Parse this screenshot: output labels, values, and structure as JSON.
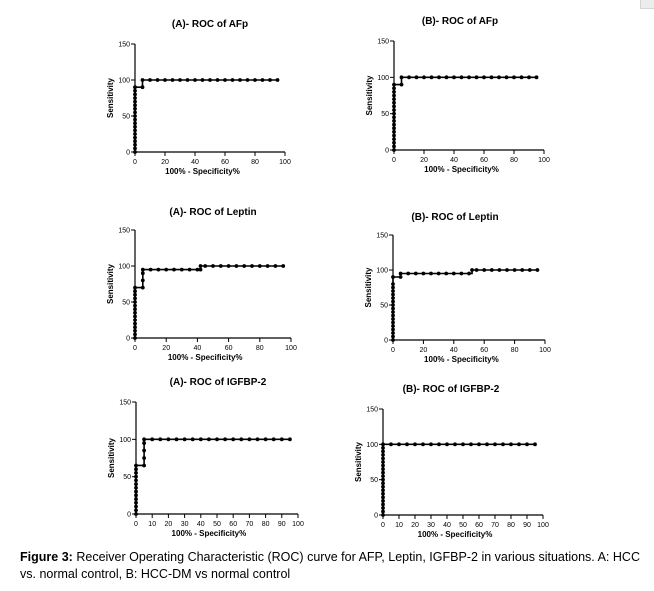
{
  "caption": {
    "label": "Figure 3:",
    "text": " Receiver Operating Characteristic (ROC) curve for AFP, Leptin, IGFBP-2 in various situations. A: HCC vs. normal control, B: HCC-DM vs normal control"
  },
  "chart_data": [
    {
      "type": "line",
      "title": "(A)- ROC of AFp",
      "xlabel": "100%  - Specificity%",
      "ylabel": "Sensitivity",
      "xlim": [
        0,
        100
      ],
      "ylim": [
        0,
        150
      ],
      "xticks": [
        0,
        20,
        40,
        60,
        80,
        100
      ],
      "yticks": [
        0,
        50,
        100,
        150
      ],
      "series": [
        {
          "color": "#000000",
          "x": [
            0,
            0,
            0,
            0,
            0,
            0,
            0,
            0,
            0,
            0,
            0,
            0,
            0,
            0,
            0,
            0,
            0,
            0,
            0,
            5,
            5,
            10,
            15,
            20,
            25,
            30,
            35,
            40,
            45,
            50,
            55,
            60,
            65,
            70,
            75,
            80,
            85,
            90,
            95
          ],
          "y": [
            0,
            5,
            10,
            15,
            20,
            25,
            30,
            35,
            40,
            45,
            50,
            55,
            60,
            65,
            70,
            75,
            80,
            85,
            90,
            90,
            100,
            100,
            100,
            100,
            100,
            100,
            100,
            100,
            100,
            100,
            100,
            100,
            100,
            100,
            100,
            100,
            100,
            100,
            100
          ]
        }
      ]
    },
    {
      "type": "line",
      "title": "(B)- ROC of AFp",
      "xlabel": "100%  - Specificity%",
      "ylabel": "Sensitivity",
      "xlim": [
        0,
        100
      ],
      "ylim": [
        0,
        150
      ],
      "xticks": [
        0,
        20,
        40,
        60,
        80,
        100
      ],
      "yticks": [
        0,
        50,
        100,
        150
      ],
      "series": [
        {
          "color": "#000000",
          "x": [
            0,
            0,
            0,
            0,
            0,
            0,
            0,
            0,
            0,
            0,
            0,
            0,
            0,
            0,
            0,
            0,
            0,
            0,
            0,
            5,
            5,
            10,
            15,
            20,
            25,
            30,
            35,
            40,
            45,
            50,
            55,
            60,
            65,
            70,
            75,
            80,
            85,
            90,
            95
          ],
          "y": [
            0,
            5,
            10,
            15,
            20,
            25,
            30,
            35,
            40,
            45,
            50,
            55,
            60,
            65,
            70,
            75,
            80,
            85,
            90,
            90,
            100,
            100,
            100,
            100,
            100,
            100,
            100,
            100,
            100,
            100,
            100,
            100,
            100,
            100,
            100,
            100,
            100,
            100,
            100
          ]
        }
      ]
    },
    {
      "type": "line",
      "title": "(A)- ROC of Leptin",
      "xlabel": "100%  - Specificity%",
      "ylabel": "Sensitivity",
      "xlim": [
        0,
        100
      ],
      "ylim": [
        0,
        150
      ],
      "xticks": [
        0,
        20,
        40,
        60,
        80,
        100
      ],
      "yticks": [
        0,
        50,
        100,
        150
      ],
      "series": [
        {
          "color": "#000000",
          "x": [
            0,
            0,
            0,
            0,
            0,
            0,
            0,
            0,
            0,
            0,
            0,
            0,
            0,
            0,
            0,
            5,
            5,
            5,
            5,
            10,
            15,
            20,
            25,
            30,
            35,
            40,
            42,
            42,
            45,
            50,
            55,
            60,
            65,
            70,
            75,
            80,
            85,
            90,
            95
          ],
          "y": [
            0,
            5,
            10,
            15,
            20,
            25,
            30,
            35,
            40,
            45,
            50,
            55,
            60,
            65,
            70,
            70,
            80,
            90,
            95,
            95,
            95,
            95,
            95,
            95,
            95,
            95,
            95,
            100,
            100,
            100,
            100,
            100,
            100,
            100,
            100,
            100,
            100,
            100,
            100
          ]
        }
      ]
    },
    {
      "type": "line",
      "title": "(B)- ROC of Leptin",
      "xlabel": "100%  - Specificity%",
      "ylabel": "Sensitivity",
      "xlim": [
        0,
        100
      ],
      "ylim": [
        0,
        150
      ],
      "xticks": [
        0,
        20,
        40,
        60,
        80,
        100
      ],
      "yticks": [
        0,
        50,
        100,
        150
      ],
      "series": [
        {
          "color": "#000000",
          "x": [
            0,
            0,
            0,
            0,
            0,
            0,
            0,
            0,
            0,
            0,
            0,
            0,
            0,
            0,
            0,
            0,
            0,
            0,
            5,
            5,
            10,
            15,
            20,
            25,
            30,
            35,
            40,
            45,
            50,
            52,
            55,
            60,
            65,
            70,
            75,
            80,
            85,
            90,
            95
          ],
          "y": [
            0,
            5,
            10,
            15,
            20,
            25,
            30,
            35,
            40,
            45,
            50,
            55,
            60,
            65,
            70,
            75,
            80,
            90,
            90,
            95,
            95,
            95,
            95,
            95,
            95,
            95,
            95,
            95,
            95,
            100,
            100,
            100,
            100,
            100,
            100,
            100,
            100,
            100,
            100
          ]
        }
      ]
    },
    {
      "type": "line",
      "title": "(A)- ROC of IGFBP-2",
      "xlabel": "100%  - Specificity%",
      "ylabel": "Sensitivity",
      "xlim": [
        0,
        100
      ],
      "ylim": [
        0,
        150
      ],
      "xticks": [
        0,
        10,
        20,
        30,
        40,
        50,
        60,
        70,
        80,
        90,
        100
      ],
      "yticks": [
        0,
        50,
        100,
        150
      ],
      "series": [
        {
          "color": "#000000",
          "x": [
            0,
            0,
            0,
            0,
            0,
            0,
            0,
            0,
            0,
            0,
            0,
            0,
            0,
            0,
            5,
            5,
            5,
            5,
            5,
            10,
            15,
            20,
            25,
            30,
            35,
            40,
            45,
            50,
            55,
            60,
            65,
            70,
            75,
            80,
            85,
            90,
            95
          ],
          "y": [
            0,
            5,
            10,
            15,
            20,
            25,
            30,
            35,
            40,
            45,
            50,
            55,
            60,
            65,
            65,
            75,
            85,
            95,
            100,
            100,
            100,
            100,
            100,
            100,
            100,
            100,
            100,
            100,
            100,
            100,
            100,
            100,
            100,
            100,
            100,
            100,
            100
          ]
        }
      ]
    },
    {
      "type": "line",
      "title": "(B)- ROC of IGFBP-2",
      "xlabel": "100%  - Specificity%",
      "ylabel": "Sensitivity",
      "xlim": [
        0,
        100
      ],
      "ylim": [
        0,
        150
      ],
      "xticks": [
        0,
        10,
        20,
        30,
        40,
        50,
        60,
        70,
        80,
        90,
        100
      ],
      "yticks": [
        0,
        50,
        100,
        150
      ],
      "series": [
        {
          "color": "#000000",
          "x": [
            0,
            0,
            0,
            0,
            0,
            0,
            0,
            0,
            0,
            0,
            0,
            0,
            0,
            0,
            0,
            0,
            0,
            0,
            0,
            0,
            0,
            5,
            10,
            15,
            20,
            25,
            30,
            35,
            40,
            45,
            50,
            55,
            60,
            65,
            70,
            75,
            80,
            85,
            90,
            95
          ],
          "y": [
            0,
            5,
            10,
            15,
            20,
            25,
            30,
            35,
            40,
            45,
            50,
            55,
            60,
            65,
            70,
            75,
            80,
            85,
            90,
            95,
            100,
            100,
            100,
            100,
            100,
            100,
            100,
            100,
            100,
            100,
            100,
            100,
            100,
            100,
            100,
            100,
            100,
            100,
            100,
            100
          ]
        }
      ]
    }
  ]
}
